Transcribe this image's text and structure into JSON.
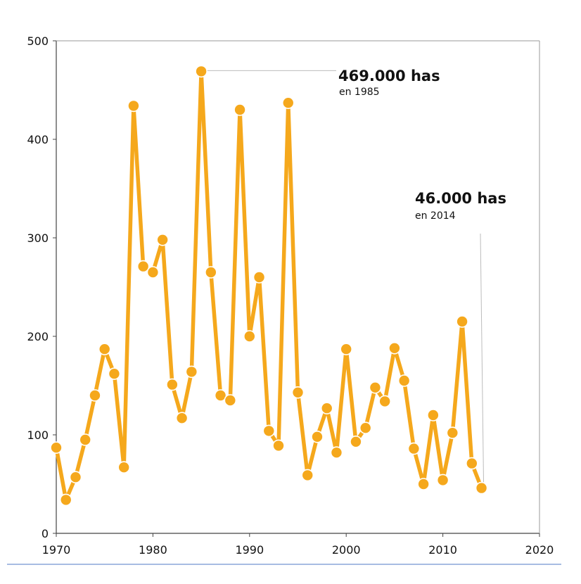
{
  "chart_data": {
    "type": "line",
    "title": "",
    "xlabel": "",
    "ylabel": "",
    "xlim": [
      1970,
      2020
    ],
    "ylim": [
      0,
      500
    ],
    "x_ticks": [
      1970,
      1980,
      1990,
      2000,
      2010,
      2020
    ],
    "y_ticks": [
      0,
      100,
      200,
      300,
      400,
      500
    ],
    "grid": false,
    "legend": "none",
    "color": "#f5a81c",
    "series": [
      {
        "x": [
          1970,
          1971,
          1972,
          1973,
          1974,
          1975,
          1976,
          1977,
          1978,
          1979,
          1980,
          1981,
          1982,
          1983,
          1984,
          1985,
          1986,
          1987,
          1988,
          1989,
          1990,
          1991,
          1992,
          1993,
          1994,
          1995,
          1996,
          1997,
          1998,
          1999,
          2000,
          2001,
          2002,
          2003,
          2004,
          2005,
          2006,
          2007,
          2008,
          2009,
          2010,
          2011,
          2012,
          2013,
          2014
        ],
        "values": [
          87,
          34,
          57,
          95,
          140,
          187,
          162,
          67,
          434,
          271,
          265,
          298,
          151,
          117,
          164,
          469,
          265,
          140,
          135,
          430,
          200,
          260,
          104,
          89,
          437,
          143,
          59,
          98,
          127,
          82,
          187,
          93,
          107,
          148,
          134,
          188,
          155,
          86,
          50,
          120,
          54,
          102,
          215,
          71,
          46
        ]
      }
    ],
    "annotations": [
      {
        "x": 1985,
        "y": 469,
        "title": "469.000 has",
        "subtitle": "en 1985"
      },
      {
        "x": 2014,
        "y": 46,
        "title": "46.000 has",
        "subtitle": "en 2014"
      }
    ]
  }
}
